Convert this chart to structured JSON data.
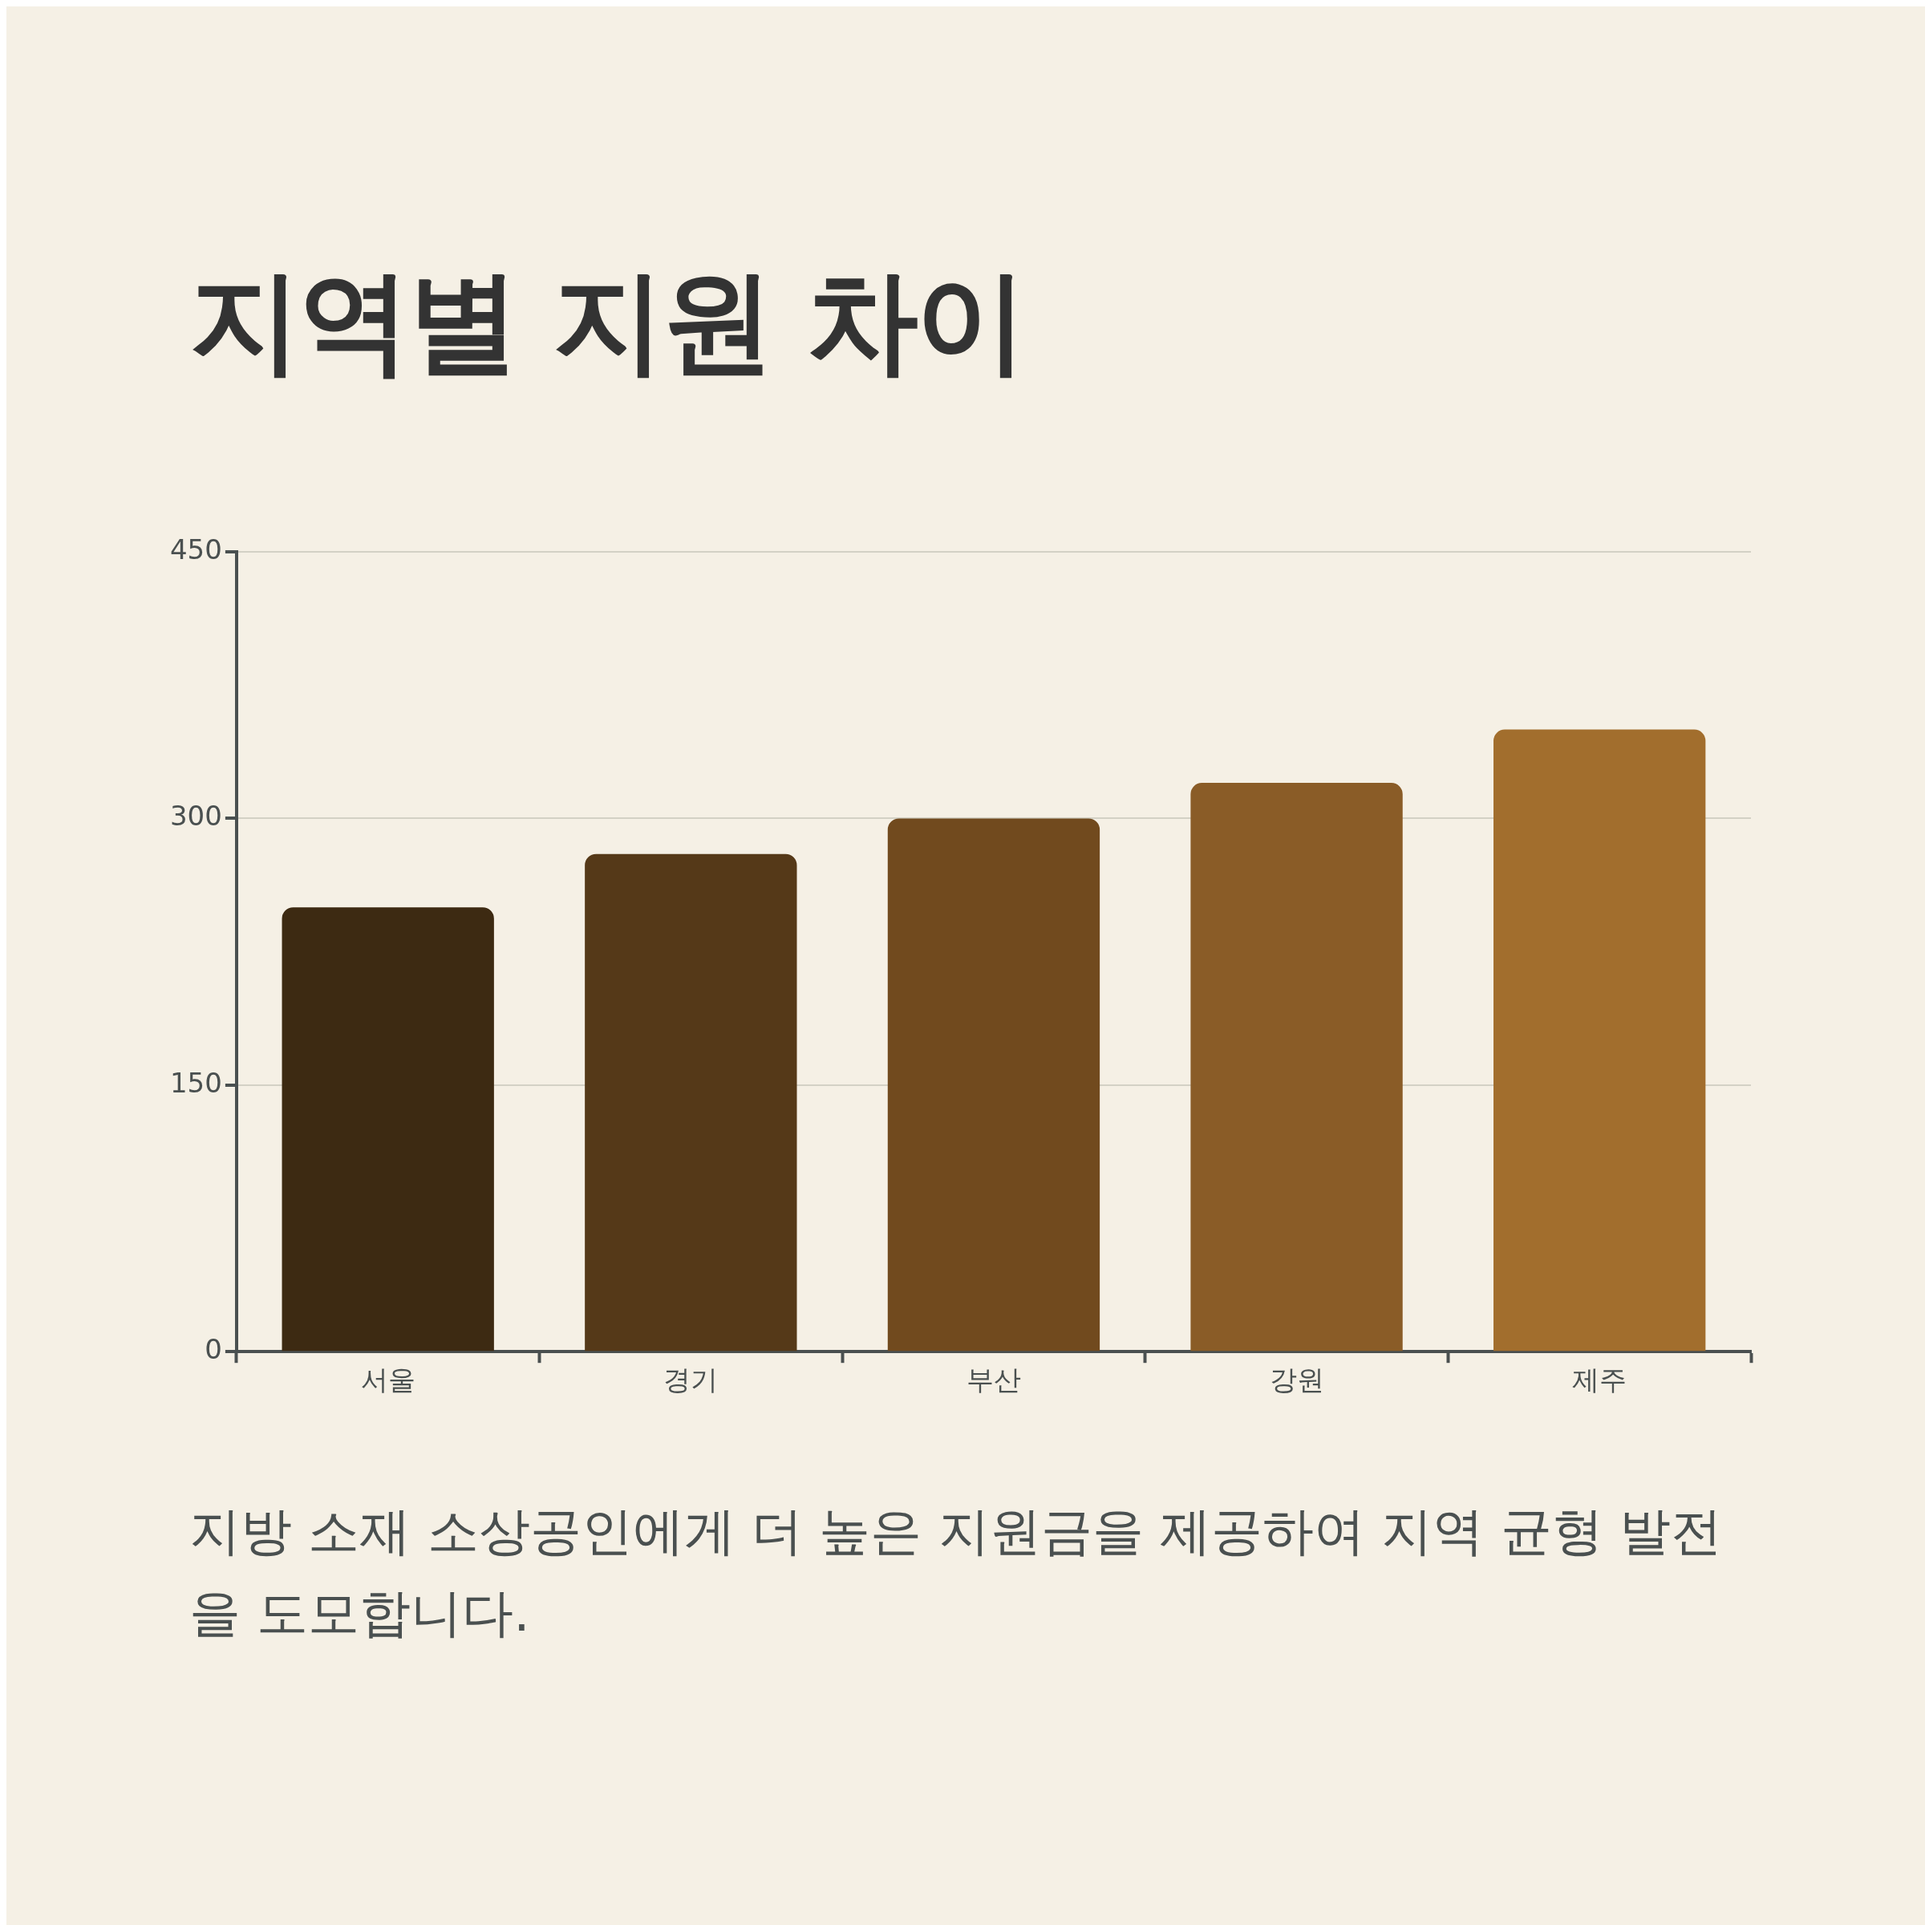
{
  "chart_data": {
    "type": "bar",
    "title": "지역별 지원 차이",
    "categories": [
      "서울",
      "경기",
      "부산",
      "강원",
      "제주"
    ],
    "values": [
      250,
      280,
      300,
      320,
      350
    ],
    "colors": [
      "#3d2a12",
      "#553918",
      "#714a1e",
      "#8a5c27",
      "#a26e2d"
    ],
    "ylim": [
      0,
      450
    ],
    "yticks": [
      0,
      150,
      300,
      450
    ],
    "grid": "y",
    "legend": false,
    "annotations": [
      "지방 소재 소상공인에게 더 높은 지원금을 제공하여 지역 균형 발전을 도모합니다."
    ]
  }
}
